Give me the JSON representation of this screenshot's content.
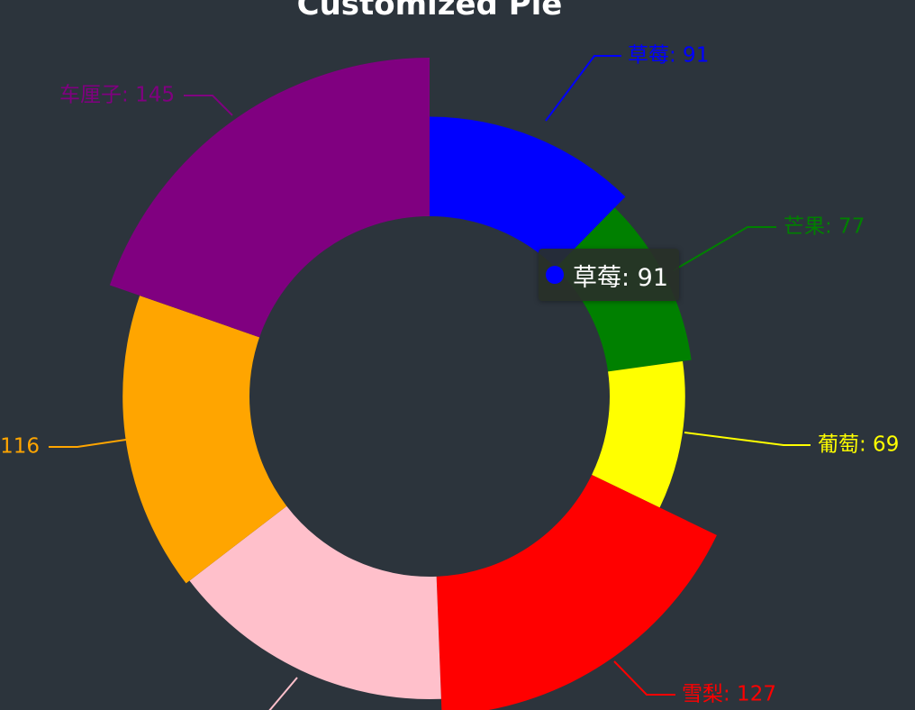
{
  "chart_data": {
    "type": "pie",
    "variant": "rose-donut",
    "title": "Customized Pie",
    "slices": [
      {
        "name": "草莓",
        "value": 91,
        "color": "#0000ff",
        "label": "草莓: 91"
      },
      {
        "name": "芒果",
        "value": 77,
        "color": "#008000",
        "label": "芒果: 77"
      },
      {
        "name": "葡萄",
        "value": 69,
        "color": "#ffff00",
        "label": "葡萄: 69"
      },
      {
        "name": "雪梨",
        "value": 127,
        "color": "#ff0000",
        "label": "雪梨: 127"
      },
      {
        "name": "",
        "value": 112,
        "color": "#ffc0cb",
        "label": ""
      },
      {
        "name": "",
        "value": 116,
        "color": "#ffa500",
        "label": "116"
      },
      {
        "name": "车厘子",
        "value": 145,
        "color": "#800080",
        "label": "车厘子: 145"
      }
    ],
    "tooltip": {
      "text": "草莓: 91",
      "color": "#0000ff"
    }
  },
  "colors": {
    "background": "#2c343c",
    "title": "#ffffff"
  }
}
